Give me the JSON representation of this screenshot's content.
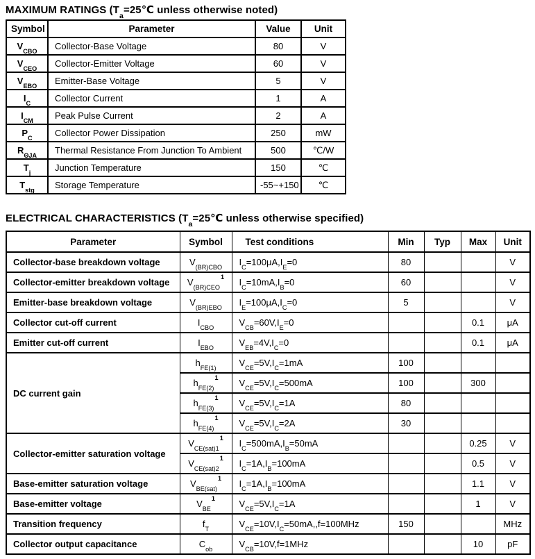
{
  "page": {
    "background": "#ffffff",
    "text_color": "#000000"
  },
  "max_ratings": {
    "title": "MAXIMUM RATINGS (T_{a}=25℃ unless otherwise noted)",
    "columns": [
      "Symbol",
      "Parameter",
      "Value",
      "Unit"
    ],
    "rows": [
      {
        "symbol": "V_{CBO}",
        "parameter": "Collector-Base Voltage",
        "value": "80",
        "unit": "V"
      },
      {
        "symbol": "V_{CEO}",
        "parameter": "Collector-Emitter Voltage",
        "value": "60",
        "unit": "V"
      },
      {
        "symbol": "V_{EBO}",
        "parameter": "Emitter-Base Voltage",
        "value": "5",
        "unit": "V"
      },
      {
        "symbol": "I_{C}",
        "parameter": "Collector Current",
        "value": "1",
        "unit": "A"
      },
      {
        "symbol": "I_{CM}",
        "parameter": "Peak Pulse Current",
        "value": "2",
        "unit": "A"
      },
      {
        "symbol": "P_{C}",
        "parameter": "Collector Power Dissipation",
        "value": "250",
        "unit": "mW"
      },
      {
        "symbol": "R_{ΘJA}",
        "parameter": "Thermal Resistance From Junction To Ambient",
        "value": "500",
        "unit": "℃/W"
      },
      {
        "symbol": "T_{j}",
        "parameter": "Junction Temperature",
        "value": "150",
        "unit": "℃"
      },
      {
        "symbol": "T_{stg}",
        "parameter": "Storage Temperature",
        "value": "-55~+150",
        "unit": "℃"
      }
    ]
  },
  "electrical": {
    "title": "ELECTRICAL CHARACTERISTICS (T_{a}=25℃ unless otherwise specified)",
    "columns": [
      "Parameter",
      "Symbol",
      "Test conditions",
      "Min",
      "Typ",
      "Max",
      "Unit"
    ],
    "rows": [
      {
        "parameter": "Collector-base breakdown voltage",
        "rowspan": 1,
        "symbol": "V_{(BR)CBO}",
        "conditions": "I_{C}=100μA,I_{E}=0",
        "min": "80",
        "typ": "",
        "max": "",
        "unit": "V"
      },
      {
        "parameter": "Collector-emitter breakdown voltage",
        "rowspan": 1,
        "symbol": "V_{(BR)CEO}^{1}",
        "conditions": "I_{C}=10mA,I_{B}=0",
        "min": "60",
        "typ": "",
        "max": "",
        "unit": "V"
      },
      {
        "parameter": "Emitter-base breakdown voltage",
        "rowspan": 1,
        "symbol": "V_{(BR)EBO}",
        "conditions": "I_{E}=100μA,I_{C}=0",
        "min": "5",
        "typ": "",
        "max": "",
        "unit": "V"
      },
      {
        "parameter": "Collector cut-off current",
        "rowspan": 1,
        "symbol": "I_{CBO}",
        "conditions": "V_{CB}=60V,I_{E}=0",
        "min": "",
        "typ": "",
        "max": "0.1",
        "unit": "μA"
      },
      {
        "parameter": "Emitter cut-off current",
        "rowspan": 1,
        "symbol": "I_{EBO}",
        "conditions": "V_{EB}=4V,I_{C}=0",
        "min": "",
        "typ": "",
        "max": "0.1",
        "unit": "μA"
      },
      {
        "parameter": "DC current gain",
        "rowspan": 4,
        "symbol": "h_{FE(1)}",
        "conditions": "V_{CE}=5V,I_{C}=1mA",
        "min": "100",
        "typ": "",
        "max": "",
        "unit": ""
      },
      {
        "symbol": "h_{FE(2)}^{1}",
        "conditions": "V_{CE}=5V,I_{C}=500mA",
        "min": "100",
        "typ": "",
        "max": "300",
        "unit": ""
      },
      {
        "symbol": "h_{FE(3)}^{1}",
        "conditions": "V_{CE}=5V,I_{C}=1A",
        "min": "80",
        "typ": "",
        "max": "",
        "unit": ""
      },
      {
        "symbol": "h_{FE(4)}^{1}",
        "conditions": "V_{CE}=5V,I_{C}=2A",
        "min": "30",
        "typ": "",
        "max": "",
        "unit": ""
      },
      {
        "parameter": "Collector-emitter saturation voltage",
        "rowspan": 2,
        "symbol": "V_{CE(sat)1}^{1}",
        "conditions": "I_{C}=500mA,I_{B}=50mA",
        "min": "",
        "typ": "",
        "max": "0.25",
        "unit": "V"
      },
      {
        "symbol": "V_{CE(sat)2}^{1}",
        "conditions": "I_{C}=1A,I_{B}=100mA",
        "min": "",
        "typ": "",
        "max": "0.5",
        "unit": "V"
      },
      {
        "parameter": "Base-emitter saturation voltage",
        "rowspan": 1,
        "symbol": "V_{BE(sat)}^{1}",
        "conditions": "I_{C}=1A,I_{B}=100mA",
        "min": "",
        "typ": "",
        "max": "1.1",
        "unit": "V"
      },
      {
        "parameter": "Base-emitter voltage",
        "rowspan": 1,
        "symbol": "V_{BE}^{1}",
        "conditions": "V_{CE}=5V,I_{C}=1A",
        "min": "",
        "typ": "",
        "max": "1",
        "unit": "V"
      },
      {
        "parameter": "Transition frequency",
        "rowspan": 1,
        "symbol": "f_{T}",
        "conditions": "V_{CE}=10V,I_{C}=50mA,,f=100MHz",
        "min": "150",
        "typ": "",
        "max": "",
        "unit": "MHz"
      },
      {
        "parameter": "Collector output capacitance",
        "rowspan": 1,
        "symbol": "C_{ob}",
        "conditions": "V_{CB}=10V,f=1MHz",
        "min": "",
        "typ": "",
        "max": "10",
        "unit": "pF"
      }
    ]
  }
}
